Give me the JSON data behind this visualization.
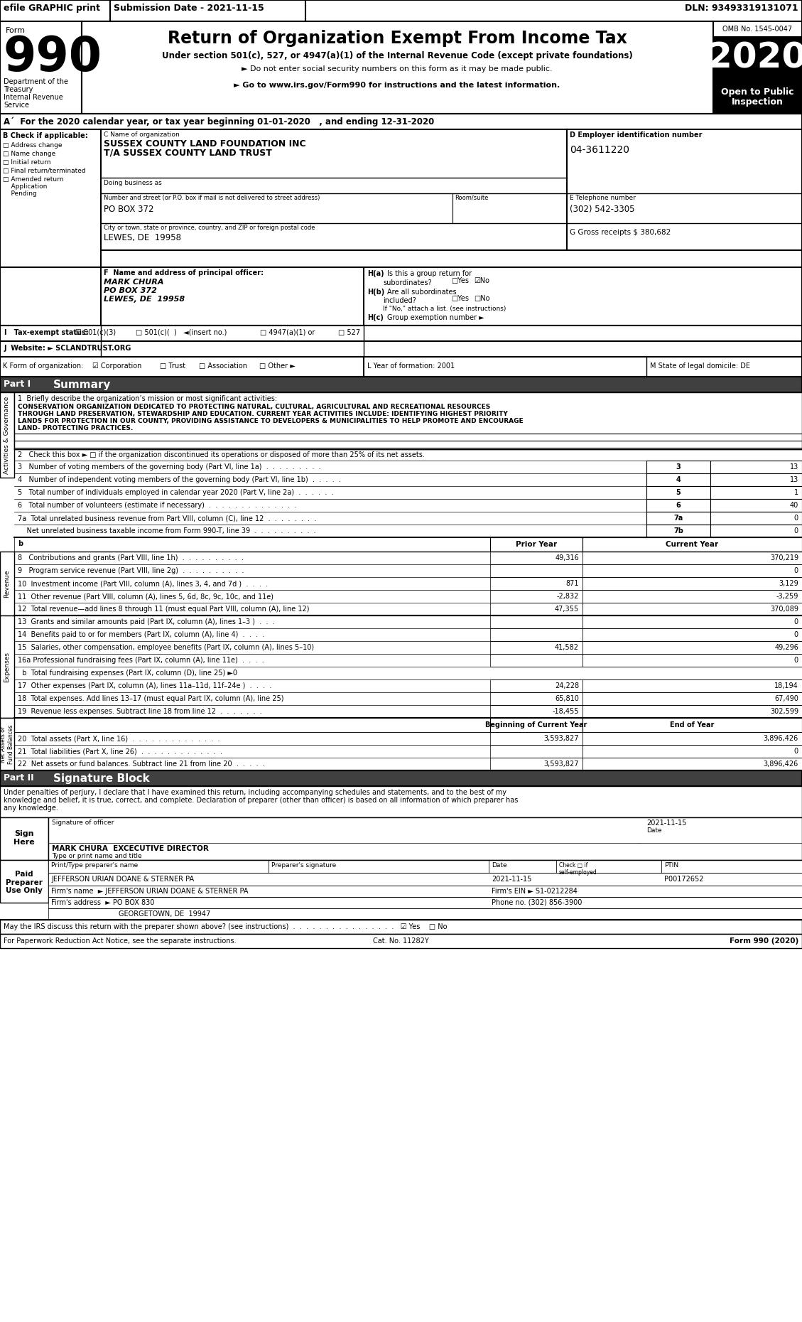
{
  "efile_text": "efile GRAPHIC print",
  "submission_text": "Submission Date - 2021-11-15",
  "dln_text": "DLN: 93493319131071",
  "form_title": "Return of Organization Exempt From Income Tax",
  "form_subtitle1": "Under section 501(c), 527, or 4947(a)(1) of the Internal Revenue Code (except private foundations)",
  "form_subtitle2": "► Do not enter social security numbers on this form as it may be made public.",
  "form_subtitle3": "► Go to www.irs.gov/Form990 for instructions and the latest information.",
  "omb": "OMB No. 1545-0047",
  "year": "2020",
  "open_public": "Open to Public\nInspection",
  "dept": "Department of the\nTreasury\nInternal Revenue\nService",
  "line_a": "Aˊ  For the 2020 calendar year, or tax year beginning 01-01-2020   , and ending 12-31-2020",
  "org_name_label": "C Name of organization",
  "org_name": "SUSSEX COUNTY LAND FOUNDATION INC",
  "org_dba": "T/A SUSSEX COUNTY LAND TRUST",
  "doing_business": "Doing business as",
  "street_label": "Number and street (or P.O. box if mail is not delivered to street address)",
  "room_label": "Room/suite",
  "street": "PO BOX 372",
  "city_label": "City or town, state or province, country, and ZIP or foreign postal code",
  "city": "LEWES, DE  19958",
  "ein_label": "D Employer identification number",
  "ein": "04-3611220",
  "phone_label": "E Telephone number",
  "phone": "(302) 542-3305",
  "gross": "G Gross receipts $ 380,682",
  "principal_label": "F  Name and address of principal officer:",
  "principal_name": "MARK CHURA",
  "principal_addr1": "PO BOX 372",
  "principal_addr2": "LEWES, DE  19958",
  "ha": "H(a)  Is this a group return for",
  "ha_sub": "subordinates?",
  "hb": "H(b)  Are all subordinates",
  "hb_sub": "included?",
  "hb_note": "If \"No,\" attach a list. (see instructions)",
  "hc": "H(c)  Group exemption number ►",
  "tax_label": "I   Tax-exempt status:",
  "website_label": "J  Website: ► SCLANDTRUST.ORG",
  "form_org_label": "K Form of organization:",
  "year_formed": "L Year of formation: 2001",
  "state_domicile": "M State of legal domicile: DE",
  "part1_label": "Part I",
  "part1_title": "Summary",
  "mission_q": "1  Briefly describe the organization’s mission or most significant activities:",
  "mission_l1": "CONSERVATION ORGANIZATION DEDICATED TO PROTECTING NATURAL, CULTURAL, AGRICULTURAL AND RECREATIONAL RESOURCES",
  "mission_l2": "THROUGH LAND PRESERVATION, STEWARDSHIP AND EDUCATION. CURRENT YEAR ACTIVITIES INCLUDE: IDENTIFYING HIGHEST PRIORITY",
  "mission_l3": "LANDS FOR PROTECTION IN OUR COUNTY, PROVIDING ASSISTANCE TO DEVELOPERS & MUNICIPALITIES TO HELP PROMOTE AND ENCOURAGE",
  "mission_l4": "LAND- PROTECTING PRACTICES.",
  "line2": "2   Check this box ► □ if the organization discontinued its operations or disposed of more than 25% of its net assets.",
  "line3_label": "3   Number of voting members of the governing body (Part VI, line 1a)  .  .  .  .  .  .  .  .  .",
  "line4_label": "4   Number of independent voting members of the governing body (Part VI, line 1b)  .  .  .  .  .",
  "line5_label": "5   Total number of individuals employed in calendar year 2020 (Part V, line 2a)  .  .  .  .  .  .",
  "line6_label": "6   Total number of volunteers (estimate if necessary)  .  .  .  .  .  .  .  .  .  .  .  .  .  .",
  "line7a_label": "7a  Total unrelated business revenue from Part VIII, column (C), line 12  .  .  .  .  .  .  .  .",
  "line7b_label": "    Net unrelated business taxable income from Form 990-T, line 39  .  .  .  .  .  .  .  .  .  .",
  "line3_val": "13",
  "line4_val": "13",
  "line5_val": "1",
  "line6_val": "40",
  "line7a_val": "0",
  "line7b_val": "0",
  "line3_num": "3",
  "line4_num": "4",
  "line5_num": "5",
  "line6_num": "6",
  "line7a_num": "7a",
  "line7b_num": "7b",
  "prior_col": "Prior Year",
  "curr_col": "Current Year",
  "line8_label": "8   Contributions and grants (Part VIII, line 1h)  .  .  .  .  .  .  .  .  .  .",
  "line9_label": "9   Program service revenue (Part VIII, line 2g)  .  .  .  .  .  .  .  .  .  .",
  "line10_label": "10  Investment income (Part VIII, column (A), lines 3, 4, and 7d )  .  .  .  .",
  "line11_label": "11  Other revenue (Part VIII, column (A), lines 5, 6d, 8c, 9c, 10c, and 11e)",
  "line12_label": "12  Total revenue—add lines 8 through 11 (must equal Part VIII, column (A), line 12)",
  "line8_p": "49,316",
  "line8_c": "370,219",
  "line9_p": "",
  "line9_c": "0",
  "line10_p": "871",
  "line10_c": "3,129",
  "line11_p": "-2,832",
  "line11_c": "-3,259",
  "line12_p": "47,355",
  "line12_c": "370,089",
  "line13_label": "13  Grants and similar amounts paid (Part IX, column (A), lines 1–3 )  .  .  .",
  "line14_label": "14  Benefits paid to or for members (Part IX, column (A), line 4)  .  .  .  .",
  "line15_label": "15  Salaries, other compensation, employee benefits (Part IX, column (A), lines 5–10)",
  "line16a_label": "16a Professional fundraising fees (Part IX, column (A), line 11e)  .  .  .  .",
  "line16b_label": "  b  Total fundraising expenses (Part IX, column (D), line 25) ►0",
  "line17_label": "17  Other expenses (Part IX, column (A), lines 11a–11d, 11f–24e )  .  .  .  .",
  "line18_label": "18  Total expenses. Add lines 13–17 (must equal Part IX, column (A), line 25)",
  "line19_label": "19  Revenue less expenses. Subtract line 18 from line 12  .  .  .  .  .  .  .",
  "line13_p": "",
  "line13_c": "0",
  "line14_p": "",
  "line14_c": "0",
  "line15_p": "41,582",
  "line15_c": "49,296",
  "line16a_p": "",
  "line16a_c": "0",
  "line17_p": "24,228",
  "line17_c": "18,194",
  "line18_p": "65,810",
  "line18_c": "67,490",
  "line19_p": "-18,455",
  "line19_c": "302,599",
  "beg_col": "Beginning of Current Year",
  "end_col": "End of Year",
  "line20_label": "20  Total assets (Part X, line 16)  .  .  .  .  .  .  .  .  .  .  .  .  .  .",
  "line21_label": "21  Total liabilities (Part X, line 26)  .  .  .  .  .  .  .  .  .  .  .  .  .",
  "line22_label": "22  Net assets or fund balances. Subtract line 21 from line 20  .  .  .  .  .",
  "line20_b": "3,593,827",
  "line20_e": "3,896,426",
  "line21_b": "",
  "line21_e": "0",
  "line22_b": "3,593,827",
  "line22_e": "3,896,426",
  "part2_label": "Part II",
  "part2_title": "Signature Block",
  "sig_text1": "Under penalties of perjury, I declare that I have examined this return, including accompanying schedules and statements, and to the best of my",
  "sig_text2": "knowledge and belief, it is true, correct, and complete. Declaration of preparer (other than officer) is based on all information of which preparer has",
  "sig_text3": "any knowledge.",
  "sig_officer_label": "Signature of officer",
  "sig_date_val": "2021-11-15",
  "sig_date_label": "Date",
  "sig_name": "MARK CHURA  EXCECUTIVE DIRECTOR",
  "sig_title_label": "Type or print name and title",
  "prep_name_label": "Print/Type preparer's name",
  "prep_sig_label": "Preparer's signature",
  "prep_date_label": "Date",
  "prep_check_label": "Check □ if\nself-employed",
  "prep_ptin_label": "PTIN",
  "prep_name_val": "JEFFERSON URIAN DOANE & STERNER PA",
  "prep_date_val": "2021-11-15",
  "prep_ptin_val": "P00172652",
  "firm_name_label": "Firm's name",
  "firm_name_val": "JEFFERSON URIAN DOANE & STERNER PA",
  "firm_ein_val": "Firm's EIN ► S1-0212284",
  "firm_addr_label": "Firm's address",
  "firm_addr_val": "PO BOX 830",
  "firm_city_val": "GEORGETOWN, DE  19947",
  "firm_phone_val": "Phone no. (302) 856-3900",
  "may_discuss": "May the IRS discuss this return with the preparer shown above? (see instructions)  .  .  .  .  .  .  .  .  .  .  .  .  .  .  .  .",
  "may_ans": "☑ Yes    □ No",
  "footer_left": "For Paperwork Reduction Act Notice, see the separate instructions.",
  "cat_no": "Cat. No. 11282Y",
  "form_footer": "Form 990 (2020)",
  "sign_here": "Sign\nHere",
  "paid_prep": "Paid\nPreparer\nUse Only"
}
